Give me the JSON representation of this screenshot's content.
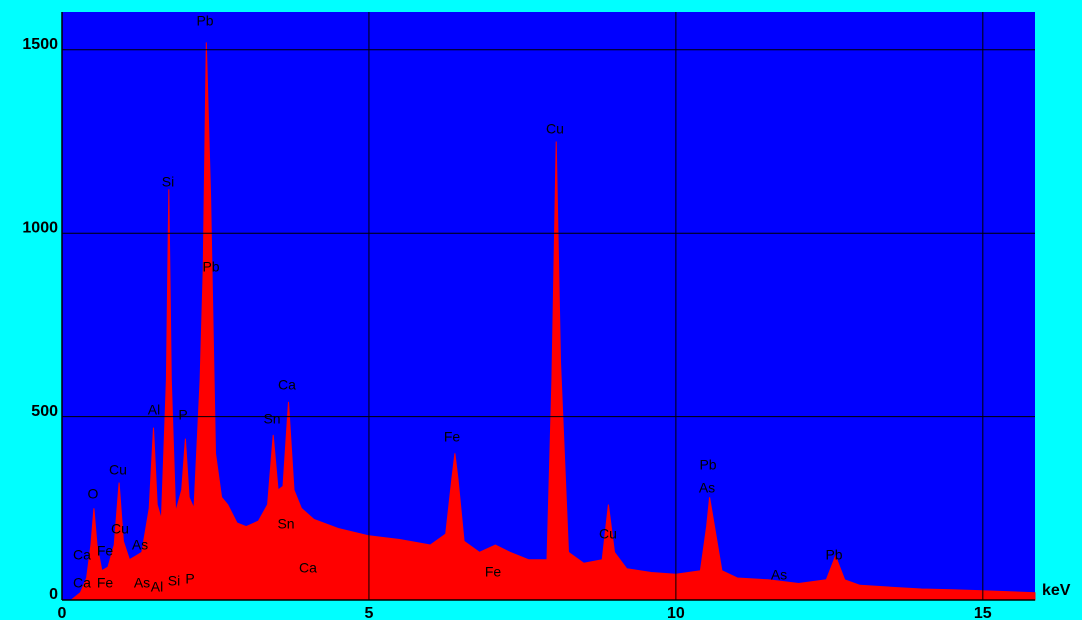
{
  "chart_data": {
    "type": "area",
    "color": "#ff0000",
    "background": "#0000ff",
    "x_unit_label": "keV",
    "xlim": [
      0,
      15.85
    ],
    "ylim": [
      0,
      1603
    ],
    "xticks": [
      0,
      5,
      10,
      15
    ],
    "yticks": [
      0,
      500,
      1000,
      1500
    ],
    "grid": true,
    "x": [
      0.15,
      0.3,
      0.4,
      0.47,
      0.52,
      0.57,
      0.65,
      0.75,
      0.85,
      0.93,
      1.0,
      1.1,
      1.2,
      1.3,
      1.42,
      1.49,
      1.55,
      1.62,
      1.7,
      1.74,
      1.78,
      1.85,
      1.95,
      2.01,
      2.07,
      2.15,
      2.25,
      2.3,
      2.35,
      2.42,
      2.5,
      2.6,
      2.7,
      2.85,
      3.0,
      3.2,
      3.35,
      3.44,
      3.52,
      3.6,
      3.69,
      3.78,
      3.9,
      4.1,
      4.5,
      5.0,
      5.5,
      6.0,
      6.25,
      6.35,
      6.4,
      6.45,
      6.55,
      6.8,
      7.06,
      7.3,
      7.6,
      7.9,
      7.98,
      8.05,
      8.12,
      8.25,
      8.5,
      8.8,
      8.9,
      9.0,
      9.2,
      9.6,
      10.0,
      10.4,
      10.5,
      10.55,
      10.62,
      10.75,
      11.0,
      11.5,
      12.0,
      12.45,
      12.6,
      12.75,
      13.0,
      13.5,
      14.0,
      14.5,
      15.0,
      15.5,
      15.85
    ],
    "values": [
      0,
      20,
      60,
      150,
      250,
      150,
      80,
      90,
      150,
      320,
      160,
      110,
      120,
      130,
      250,
      470,
      260,
      220,
      600,
      1120,
      600,
      240,
      300,
      440,
      280,
      250,
      600,
      900,
      1520,
      1100,
      400,
      280,
      260,
      210,
      200,
      215,
      260,
      450,
      300,
      310,
      540,
      300,
      250,
      220,
      195,
      175,
      165,
      150,
      180,
      330,
      400,
      330,
      160,
      130,
      150,
      130,
      110,
      110,
      600,
      1250,
      650,
      130,
      100,
      110,
      260,
      130,
      85,
      75,
      70,
      80,
      200,
      280,
      210,
      80,
      60,
      55,
      45,
      55,
      120,
      55,
      40,
      35,
      30,
      28,
      25,
      22,
      20
    ],
    "annotations": [
      "Pb",
      "Si",
      "Pb",
      "Al",
      "P",
      "Sn",
      "Ca",
      "Cu",
      "O",
      "Cu",
      "As",
      "Ca",
      "Fe",
      "Ca",
      "Fe",
      "As",
      "Al",
      "Si",
      "P",
      "Sn",
      "Ca",
      "Fe",
      "Fe",
      "Cu",
      "Cu",
      "Pb",
      "As",
      "As",
      "Pb"
    ]
  }
}
